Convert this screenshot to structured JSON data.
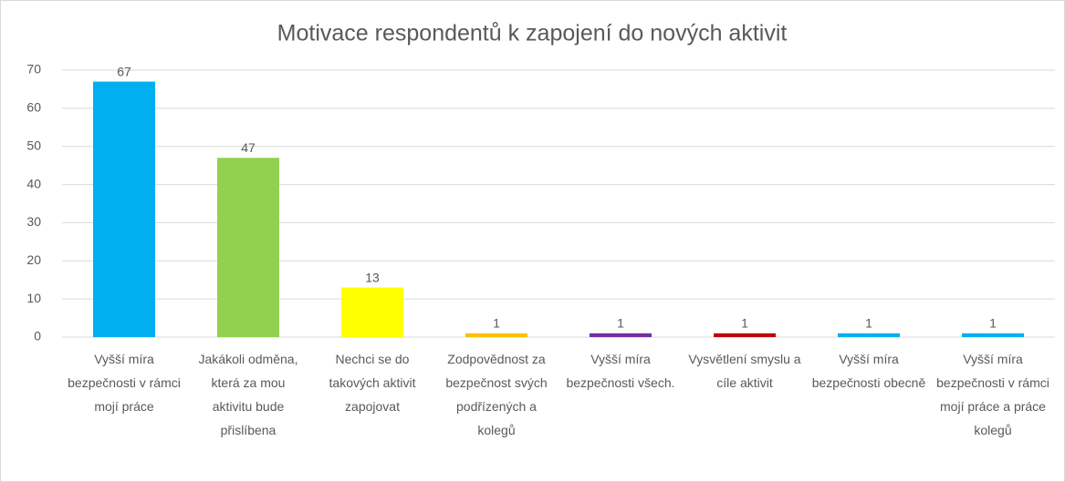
{
  "chart_data": {
    "type": "bar",
    "title": "Motivace respondentů k zapojení do nových aktivit",
    "categories": [
      "Vyšší míra bezpečnosti v rámci mojí práce",
      "Jakákoli odměna, která za mou aktivitu bude přislíbena",
      "Nechci se do takových aktivit zapojovat",
      "Zodpovědnost za bezpečnost svých podřízených a kolegů",
      "Vyšší míra bezpečnosti všech.",
      "Vysvětlení smyslu a cíle aktivit",
      "Vyšší míra bezpečnosti obecně",
      "Vyšší míra bezpečnosti v rámci mojí práce a práce kolegů"
    ],
    "values": [
      67,
      47,
      13,
      1,
      1,
      1,
      1,
      1
    ],
    "colors": [
      "#00b0f0",
      "#92d050",
      "#ffff00",
      "#ffc000",
      "#7030a0",
      "#c00000",
      "#00b0f0",
      "#00b0f0"
    ],
    "ylim": [
      0,
      70
    ],
    "yticks": [
      0,
      10,
      20,
      30,
      40,
      50,
      60,
      70
    ],
    "grid": true
  }
}
